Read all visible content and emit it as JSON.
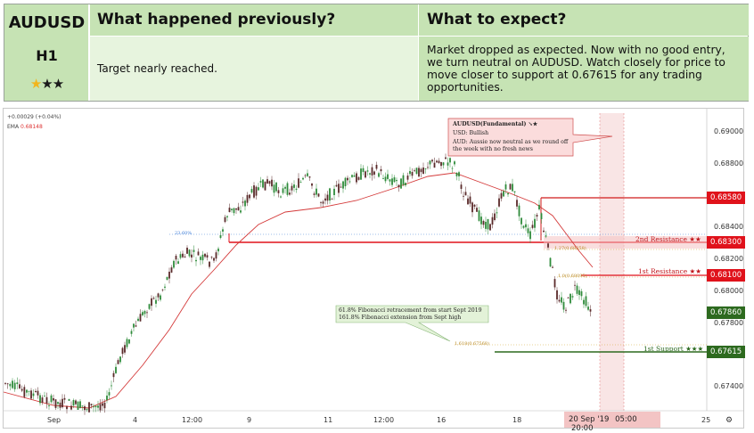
{
  "header": {
    "symbol": "AUDUSD",
    "timeframe": "H1",
    "stars_filled": 1,
    "stars_total": 3,
    "prev_title": "What happened previously?",
    "expect_title": "What to expect?",
    "prev_text": "Target nearly reached.",
    "expect_text": "Market dropped as expected. Now with no good entry, we turn neutral on AUDUSD. Watch closely for price to move closer to support at 0.67615 for any trading opportunities."
  },
  "chart_data": {
    "type": "candlestick",
    "title": "",
    "legend_ohlc": "+0.00029 (+0.04%)",
    "ema_label": "EMA",
    "ema_value": "0.68148",
    "y_ticks": [
      "0.69000",
      "0.68800",
      "0.68400",
      "0.68200",
      "0.68000",
      "0.67800",
      "0.67400"
    ],
    "x_ticks": [
      "Sep",
      "4",
      "12:00",
      "9",
      "11",
      "12:00",
      "16",
      "18",
      "20 Sep '19",
      "05:00",
      "20:00",
      "25"
    ],
    "ylim": [
      0.673,
      0.6915
    ],
    "price_levels": [
      {
        "label": "2nd Resistance ★★",
        "value": "0.68300",
        "color": "#e0121b"
      },
      {
        "label": "1st Resistance ★★",
        "value": "0.68100",
        "color": "#e0121b"
      },
      {
        "label": "1st Support ★★★",
        "value": "0.67615",
        "color": "#2d6a1f"
      }
    ],
    "other_tags": [
      {
        "value": "0.68580",
        "color": "#e0121b"
      },
      {
        "value": "0.67860",
        "color": "#2d6a1f"
      }
    ],
    "fib_labels": [
      "23.60%",
      "1.27(0.68258)",
      "1.0(0.68095)",
      "1.618(0.67568)"
    ],
    "annotations": {
      "fundamental_title": "AUDUSD(Fundamental) ↘★",
      "fundamental_usd": "USD: Bullish",
      "fundamental_aud": "AUD: Aussie now neutral as we round off the week with no fresh news",
      "fib_note_1": "61.8% Fibonacci retracement from start Sept 2019",
      "fib_note_2": "161.8% Fibonacci extension from Sept high"
    }
  }
}
